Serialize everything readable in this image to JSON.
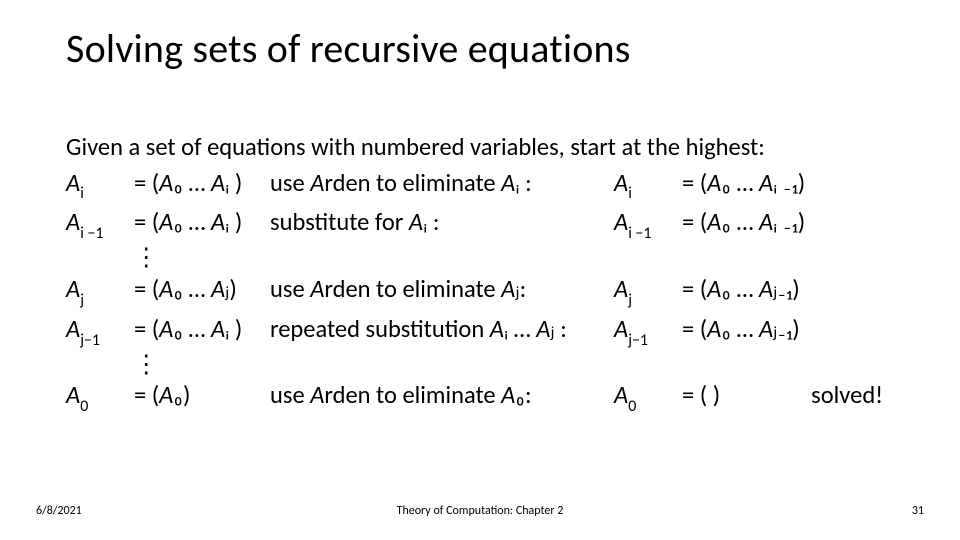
{
  "title": "Solving sets of recursive equations",
  "intro": "Given a set of equations with numbered variables, start at the highest:",
  "rows": [
    {
      "lhs_base": "A",
      "lhs_sub": "i",
      "eq": "= (A₀ … Aᵢ )",
      "desc": "use Arden to eliminate Aᵢ :",
      "r_base": "A",
      "r_sub": "i",
      "r_eq": "= (A₀ … Aᵢ ₋₁)",
      "solved": ""
    },
    {
      "lhs_base": "A",
      "lhs_sub": "i −1",
      "eq": "= (A₀ … Aᵢ )",
      "desc": "substitute for Aᵢ :",
      "r_base": "A",
      "r_sub": "i −1",
      "r_eq": "= (A₀ … Aᵢ ₋₁)",
      "solved": ""
    },
    {
      "vdots": "⋮"
    },
    {
      "lhs_base": "A",
      "lhs_sub": "j",
      "eq": "= (A₀ … Aⱼ)",
      "desc": "use Arden to eliminate Aⱼ:",
      "r_base": "A",
      "r_sub": "j",
      "r_eq": "= (A₀ … Aⱼ₋₁)",
      "solved": ""
    },
    {
      "lhs_base": "A",
      "lhs_sub": "j−1",
      "eq": "= (A₀ … Aᵢ )",
      "desc": "repeated substitution Aᵢ … Aⱼ :",
      "r_base": "A",
      "r_sub": "j−1",
      "r_eq": "= (A₀ … Aⱼ₋₁)",
      "solved": ""
    },
    {
      "vdots": "⋮"
    },
    {
      "lhs_base": "A",
      "lhs_sub": "0",
      "eq": "= (A₀)",
      "desc": "use Arden to eliminate A₀:",
      "r_base": "A",
      "r_sub": "0",
      "r_eq": "= ( )",
      "solved": "solved!"
    }
  ],
  "footer": {
    "date": "6/8/2021",
    "center": "Theory of Computation: Chapter 2",
    "page": "31"
  }
}
